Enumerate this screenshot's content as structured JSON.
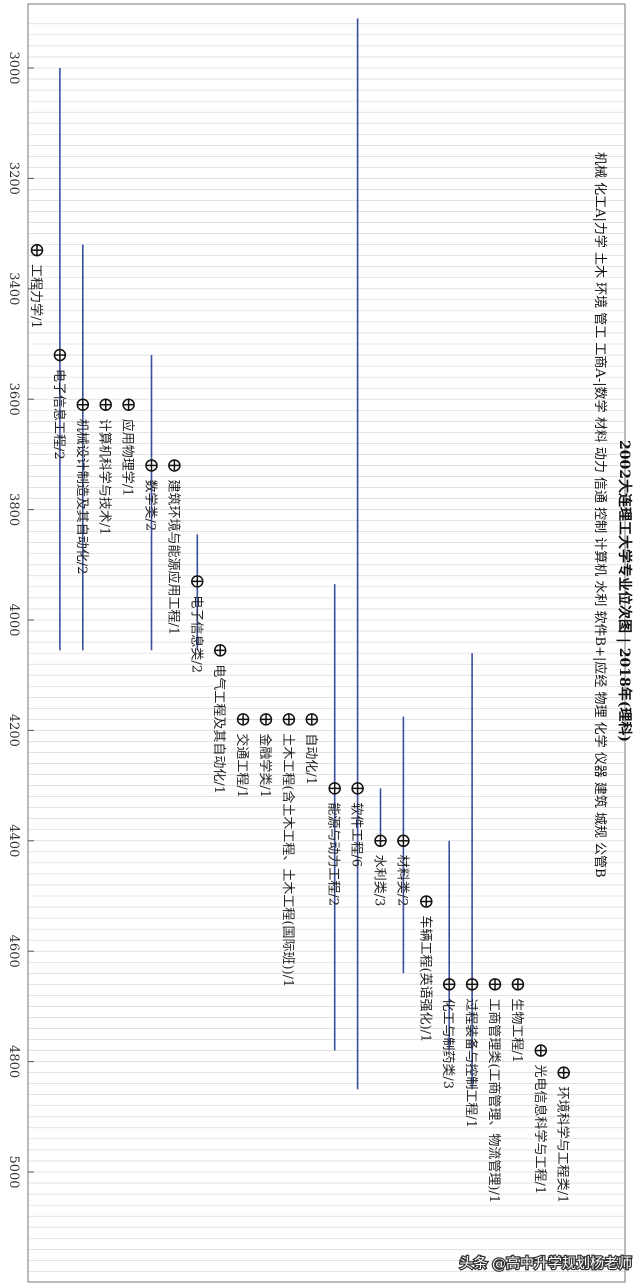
{
  "chart_data": {
    "type": "scatter",
    "orientation": "rotated-90-clockwise",
    "title": "2002大连理工大学专业位次图 | 2018年(理科)",
    "subtitle": "机械 化工A|力学 土木 环境 管工 工商A-|数学 材料 动力 信通 控制 计算机 水利 软件B+|应经 物理 化学 仪器 建筑 城规 公管B",
    "ylim": [
      2900,
      5200
    ],
    "ticks": [
      3000,
      3200,
      3400,
      3600,
      3800,
      4000,
      4200,
      4400,
      4600,
      4800,
      5000
    ],
    "tick_labels": [
      "3000",
      "3200",
      "3400",
      "3600",
      "3800",
      "4000",
      "4200",
      "4400",
      "4600",
      "4800",
      "5000"
    ],
    "grid": true,
    "points": [
      {
        "name": "工程力学/1",
        "rank": 3330
      },
      {
        "name": "电子信息工程/2",
        "rank": 3520,
        "range": [
          3000,
          4055
        ]
      },
      {
        "name": "机械设计制造及其自动化/2",
        "rank": 3610,
        "range": [
          3320,
          4055
        ]
      },
      {
        "name": "计算机科学与技术/1",
        "rank": 3610
      },
      {
        "name": "应用物理学/1",
        "rank": 3610
      },
      {
        "name": "数学类/2",
        "rank": 3720,
        "range": [
          3520,
          4055
        ]
      },
      {
        "name": "建筑环境与能源应用工程/1",
        "rank": 3720
      },
      {
        "name": "电子信息类/2",
        "rank": 3930,
        "range": [
          3845,
          4055
        ]
      },
      {
        "name": "电气工程及其自动化/1",
        "rank": 4055
      },
      {
        "name": "交通工程/1",
        "rank": 4180
      },
      {
        "name": "金融学类/1",
        "rank": 4180
      },
      {
        "name": "土木工程(含土木工程、土木工程(国际班))/1",
        "rank": 4180
      },
      {
        "name": "自动化/1",
        "rank": 4180
      },
      {
        "name": "能源与动力工程/2",
        "rank": 4305,
        "range": [
          3935,
          4780
        ]
      },
      {
        "name": "软件工程/6",
        "rank": 4305,
        "range": [
          2910,
          4850
        ]
      },
      {
        "name": "水利类/3",
        "rank": 4400,
        "range": [
          4305,
          4400
        ]
      },
      {
        "name": "材料类/2",
        "rank": 4400,
        "range": [
          4175,
          4640
        ]
      },
      {
        "name": "车辆工程(英语强化)/1",
        "rank": 4510
      },
      {
        "name": "化工与制药类/3",
        "rank": 4660,
        "range": [
          4400,
          4780
        ]
      },
      {
        "name": "过程装备与控制工程/1",
        "rank": 4660,
        "range": [
          4060,
          4850
        ]
      },
      {
        "name": "工商管理类(工商管理、物流管理)/1",
        "rank": 4660
      },
      {
        "name": "生物工程/1",
        "rank": 4660
      },
      {
        "name": "光电信息科学与工程/1",
        "rank": 4780
      },
      {
        "name": "环境科学与工程类/1",
        "rank": 4820
      }
    ]
  },
  "watermark": "头条 @高中升学规划杨老师"
}
